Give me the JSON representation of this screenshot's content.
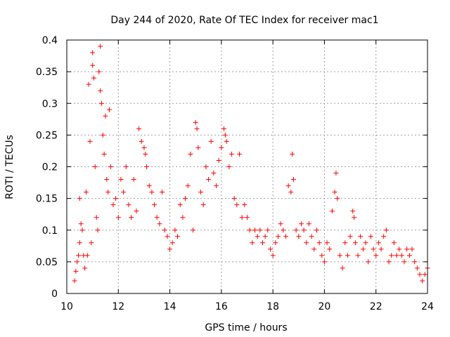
{
  "chart_data": {
    "type": "scatter",
    "title": "Day 244 of 2020, Rate Of TEC Index for receiver mac1",
    "xlabel": "GPS time / hours",
    "ylabel": "ROTI / TECUs",
    "xlim": [
      10,
      24
    ],
    "ylim": [
      0,
      0.4
    ],
    "xticks": [
      10,
      12,
      14,
      16,
      18,
      20,
      22,
      24
    ],
    "yticks": [
      0,
      0.05,
      0.1,
      0.15,
      0.2,
      0.25,
      0.3,
      0.35,
      0.4
    ],
    "xtick_labels": [
      "10",
      "12",
      "14",
      "16",
      "18",
      "20",
      "22",
      "24"
    ],
    "ytick_labels": [
      "0",
      "0.05",
      "0.1",
      "0.15",
      "0.2",
      "0.25",
      "0.3",
      "0.35",
      "0.4"
    ],
    "grid": true,
    "marker": "plus",
    "color": "#ff0000",
    "series": [
      {
        "points": [
          [
            10.3,
            0.02
          ],
          [
            10.35,
            0.035
          ],
          [
            10.4,
            0.05
          ],
          [
            10.45,
            0.06
          ],
          [
            10.5,
            0.08
          ],
          [
            10.5,
            0.15
          ],
          [
            10.55,
            0.11
          ],
          [
            10.6,
            0.1
          ],
          [
            10.65,
            0.06
          ],
          [
            10.7,
            0.04
          ],
          [
            10.75,
            0.16
          ],
          [
            10.8,
            0.06
          ],
          [
            10.85,
            0.33
          ],
          [
            10.9,
            0.24
          ],
          [
            10.95,
            0.08
          ],
          [
            11.0,
            0.38
          ],
          [
            11.0,
            0.36
          ],
          [
            11.05,
            0.34
          ],
          [
            11.1,
            0.2
          ],
          [
            11.15,
            0.12
          ],
          [
            11.2,
            0.1
          ],
          [
            11.25,
            0.35
          ],
          [
            11.3,
            0.39
          ],
          [
            11.3,
            0.32
          ],
          [
            11.35,
            0.3
          ],
          [
            11.4,
            0.25
          ],
          [
            11.45,
            0.22
          ],
          [
            11.5,
            0.28
          ],
          [
            11.55,
            0.18
          ],
          [
            11.6,
            0.16
          ],
          [
            11.65,
            0.29
          ],
          [
            11.7,
            0.2
          ],
          [
            11.8,
            0.14
          ],
          [
            11.9,
            0.15
          ],
          [
            12.0,
            0.12
          ],
          [
            12.1,
            0.18
          ],
          [
            12.2,
            0.16
          ],
          [
            12.3,
            0.2
          ],
          [
            12.4,
            0.14
          ],
          [
            12.5,
            0.12
          ],
          [
            12.6,
            0.18
          ],
          [
            12.7,
            0.13
          ],
          [
            12.8,
            0.26
          ],
          [
            12.9,
            0.24
          ],
          [
            13.0,
            0.23
          ],
          [
            13.05,
            0.22
          ],
          [
            13.1,
            0.2
          ],
          [
            13.2,
            0.17
          ],
          [
            13.3,
            0.16
          ],
          [
            13.4,
            0.14
          ],
          [
            13.5,
            0.12
          ],
          [
            13.6,
            0.11
          ],
          [
            13.7,
            0.16
          ],
          [
            13.8,
            0.1
          ],
          [
            13.9,
            0.09
          ],
          [
            14.0,
            0.07
          ],
          [
            14.1,
            0.08
          ],
          [
            14.2,
            0.1
          ],
          [
            14.3,
            0.09
          ],
          [
            14.4,
            0.14
          ],
          [
            14.5,
            0.12
          ],
          [
            14.6,
            0.15
          ],
          [
            14.7,
            0.17
          ],
          [
            14.8,
            0.22
          ],
          [
            14.9,
            0.1
          ],
          [
            15.0,
            0.27
          ],
          [
            15.05,
            0.26
          ],
          [
            15.1,
            0.23
          ],
          [
            15.2,
            0.16
          ],
          [
            15.3,
            0.14
          ],
          [
            15.4,
            0.2
          ],
          [
            15.5,
            0.18
          ],
          [
            15.6,
            0.24
          ],
          [
            15.7,
            0.19
          ],
          [
            15.8,
            0.17
          ],
          [
            15.9,
            0.21
          ],
          [
            16.0,
            0.23
          ],
          [
            16.1,
            0.26
          ],
          [
            16.15,
            0.25
          ],
          [
            16.2,
            0.24
          ],
          [
            16.3,
            0.2
          ],
          [
            16.4,
            0.22
          ],
          [
            16.5,
            0.15
          ],
          [
            16.6,
            0.14
          ],
          [
            16.7,
            0.22
          ],
          [
            16.8,
            0.12
          ],
          [
            16.9,
            0.14
          ],
          [
            17.0,
            0.12
          ],
          [
            17.1,
            0.1
          ],
          [
            17.2,
            0.08
          ],
          [
            17.3,
            0.1
          ],
          [
            17.4,
            0.09
          ],
          [
            17.5,
            0.1
          ],
          [
            17.6,
            0.08
          ],
          [
            17.7,
            0.09
          ],
          [
            17.8,
            0.1
          ],
          [
            17.9,
            0.07
          ],
          [
            18.0,
            0.06
          ],
          [
            18.1,
            0.08
          ],
          [
            18.2,
            0.09
          ],
          [
            18.3,
            0.11
          ],
          [
            18.4,
            0.1
          ],
          [
            18.5,
            0.09
          ],
          [
            18.6,
            0.17
          ],
          [
            18.7,
            0.16
          ],
          [
            18.75,
            0.22
          ],
          [
            18.8,
            0.18
          ],
          [
            18.9,
            0.1
          ],
          [
            19.0,
            0.09
          ],
          [
            19.1,
            0.11
          ],
          [
            19.2,
            0.1
          ],
          [
            19.3,
            0.08
          ],
          [
            19.4,
            0.11
          ],
          [
            19.5,
            0.09
          ],
          [
            19.6,
            0.07
          ],
          [
            19.7,
            0.1
          ],
          [
            19.8,
            0.08
          ],
          [
            19.9,
            0.06
          ],
          [
            20.0,
            0.05
          ],
          [
            20.1,
            0.08
          ],
          [
            20.2,
            0.07
          ],
          [
            20.3,
            0.13
          ],
          [
            20.4,
            0.16
          ],
          [
            20.45,
            0.19
          ],
          [
            20.5,
            0.15
          ],
          [
            20.6,
            0.06
          ],
          [
            20.7,
            0.04
          ],
          [
            20.8,
            0.08
          ],
          [
            20.9,
            0.06
          ],
          [
            21.0,
            0.09
          ],
          [
            21.1,
            0.13
          ],
          [
            21.15,
            0.12
          ],
          [
            21.2,
            0.08
          ],
          [
            21.3,
            0.06
          ],
          [
            21.4,
            0.09
          ],
          [
            21.5,
            0.07
          ],
          [
            21.6,
            0.08
          ],
          [
            21.7,
            0.05
          ],
          [
            21.8,
            0.09
          ],
          [
            21.9,
            0.07
          ],
          [
            22.0,
            0.06
          ],
          [
            22.1,
            0.08
          ],
          [
            22.2,
            0.07
          ],
          [
            22.3,
            0.09
          ],
          [
            22.4,
            0.1
          ],
          [
            22.5,
            0.05
          ],
          [
            22.6,
            0.06
          ],
          [
            22.7,
            0.08
          ],
          [
            22.8,
            0.06
          ],
          [
            22.9,
            0.07
          ],
          [
            23.0,
            0.06
          ],
          [
            23.1,
            0.05
          ],
          [
            23.2,
            0.07
          ],
          [
            23.3,
            0.06
          ],
          [
            23.4,
            0.07
          ],
          [
            23.5,
            0.05
          ],
          [
            23.6,
            0.04
          ],
          [
            23.7,
            0.03
          ],
          [
            23.8,
            0.02
          ],
          [
            23.9,
            0.03
          ],
          [
            24.0,
            0.04
          ]
        ]
      }
    ]
  }
}
